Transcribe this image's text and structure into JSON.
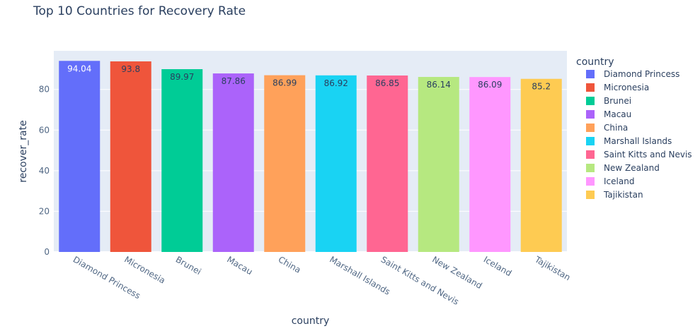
{
  "chart_data": {
    "type": "bar",
    "title": "Top 10 Countries for Recovery Rate",
    "xlabel": "country",
    "ylabel": "recover_rate",
    "ylim": [
      0,
      99
    ],
    "yticks": [
      0,
      20,
      40,
      60,
      80
    ],
    "grid": true,
    "legend_title": "country",
    "legend_position": "right",
    "categories": [
      "Diamond Princess",
      "Micronesia",
      "Brunei",
      "Macau",
      "China",
      "Marshall Islands",
      "Saint Kitts and Nevis",
      "New Zealand",
      "Iceland",
      "Tajikistan"
    ],
    "values": [
      94.04,
      93.8,
      89.97,
      87.86,
      86.99,
      86.92,
      86.85,
      86.14,
      86.09,
      85.2
    ],
    "value_labels": [
      "94.04",
      "93.8",
      "89.97",
      "87.86",
      "86.99",
      "86.92",
      "86.85",
      "86.14",
      "86.09",
      "85.2"
    ],
    "colors": [
      "#636efa",
      "#EF553B",
      "#00cc96",
      "#ab63fa",
      "#FFA15A",
      "#19d3f3",
      "#FF6692",
      "#B6E880",
      "#FF97FF",
      "#FECB52"
    ],
    "label_colors": [
      "#ffffff",
      "#2a3f5f",
      "#2a3f5f",
      "#2a3f5f",
      "#2a3f5f",
      "#2a3f5f",
      "#2a3f5f",
      "#2a3f5f",
      "#2a3f5f",
      "#2a3f5f"
    ],
    "plot_bg": "#e5ecf6"
  }
}
